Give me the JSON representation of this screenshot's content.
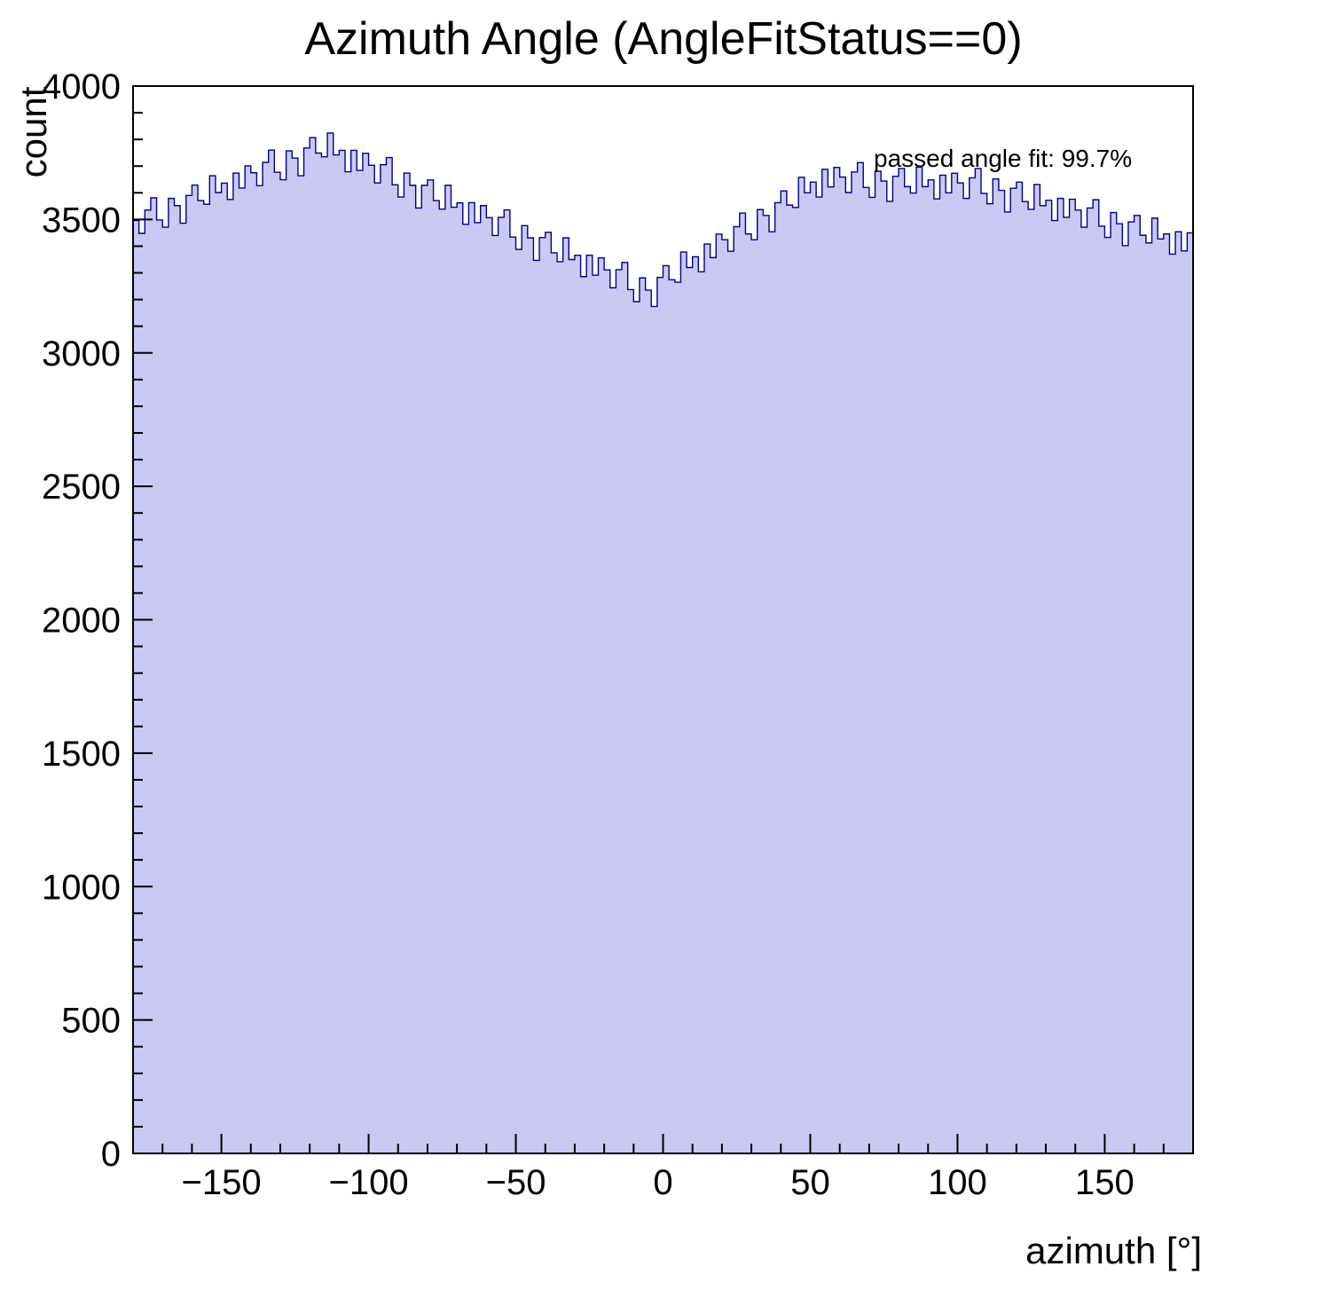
{
  "title": "Azimuth Angle (AngleFitStatus==0)",
  "chart_data": {
    "type": "bar",
    "subtype": "histogram-step-filled",
    "title": "Azimuth Angle (AngleFitStatus==0)",
    "xlabel": "azimuth [°]",
    "ylabel": "count",
    "annotation": "passed angle fit: 99.7%",
    "xlim": [
      -180,
      180
    ],
    "ylim": [
      0,
      4000
    ],
    "bin_width": 2,
    "x_start": -180,
    "grid": false,
    "legend_position": "top-right-inside",
    "fill_color": "#c9c9f4",
    "line_color": "#00008a",
    "frame_color": "#000000",
    "x_major_step": 50,
    "x_minor_step": 10,
    "y_major_step": 500,
    "y_minor_step": 100,
    "x_tick_values": [
      -150,
      -100,
      -50,
      0,
      50,
      100,
      150
    ],
    "x_tick_labels": [
      "−150",
      "−100",
      "−50",
      "0",
      "50",
      "100",
      "150"
    ],
    "y_tick_values": [
      0,
      500,
      1000,
      1500,
      2000,
      2500,
      3000,
      3500,
      4000
    ],
    "y_tick_labels": [
      "0",
      "500",
      "1000",
      "1500",
      "2000",
      "2500",
      "3000",
      "3500",
      "4000"
    ],
    "values": [
      3496,
      3448,
      3535,
      3581,
      3498,
      3471,
      3579,
      3552,
      3486,
      3590,
      3629,
      3571,
      3557,
      3664,
      3601,
      3636,
      3575,
      3674,
      3618,
      3701,
      3675,
      3627,
      3714,
      3760,
      3677,
      3649,
      3757,
      3730,
      3664,
      3768,
      3807,
      3749,
      3735,
      3824,
      3742,
      3759,
      3679,
      3759,
      3684,
      3748,
      3703,
      3637,
      3705,
      3732,
      3630,
      3584,
      3674,
      3628,
      3543,
      3628,
      3648,
      3571,
      3539,
      3628,
      3546,
      3562,
      3482,
      3563,
      3488,
      3552,
      3507,
      3440,
      3508,
      3536,
      3434,
      3388,
      3477,
      3431,
      3347,
      3432,
      3452,
      3375,
      3342,
      3431,
      3350,
      3366,
      3286,
      3366,
      3291,
      3356,
      3311,
      3244,
      3312,
      3339,
      3237,
      3192,
      3281,
      3235,
      3174,
      3283,
      3327,
      3274,
      3265,
      3378,
      3320,
      3360,
      3304,
      3408,
      3357,
      3445,
      3424,
      3381,
      3473,
      3524,
      3446,
      3424,
      3537,
      3515,
      3454,
      3563,
      3607,
      3554,
      3545,
      3658,
      3600,
      3640,
      3584,
      3688,
      3622,
      3695,
      3659,
      3601,
      3678,
      3713,
      3620,
      3583,
      3681,
      3644,
      3568,
      3662,
      3691,
      3623,
      3599,
      3696,
      3623,
      3648,
      3577,
      3666,
      3600,
      3673,
      3637,
      3579,
      3656,
      3691,
      3598,
      3559,
      3652,
      3609,
      3528,
      3617,
      3640,
      3567,
      3538,
      3631,
      3552,
      3572,
      3496,
      3579,
      3508,
      3576,
      3535,
      3471,
      3543,
      3574,
      3475,
      3433,
      3526,
      3484,
      3402,
      3491,
      3515,
      3441,
      3412,
      3505,
      3427,
      3446,
      3370,
      3454,
      3382,
      3450
    ]
  }
}
